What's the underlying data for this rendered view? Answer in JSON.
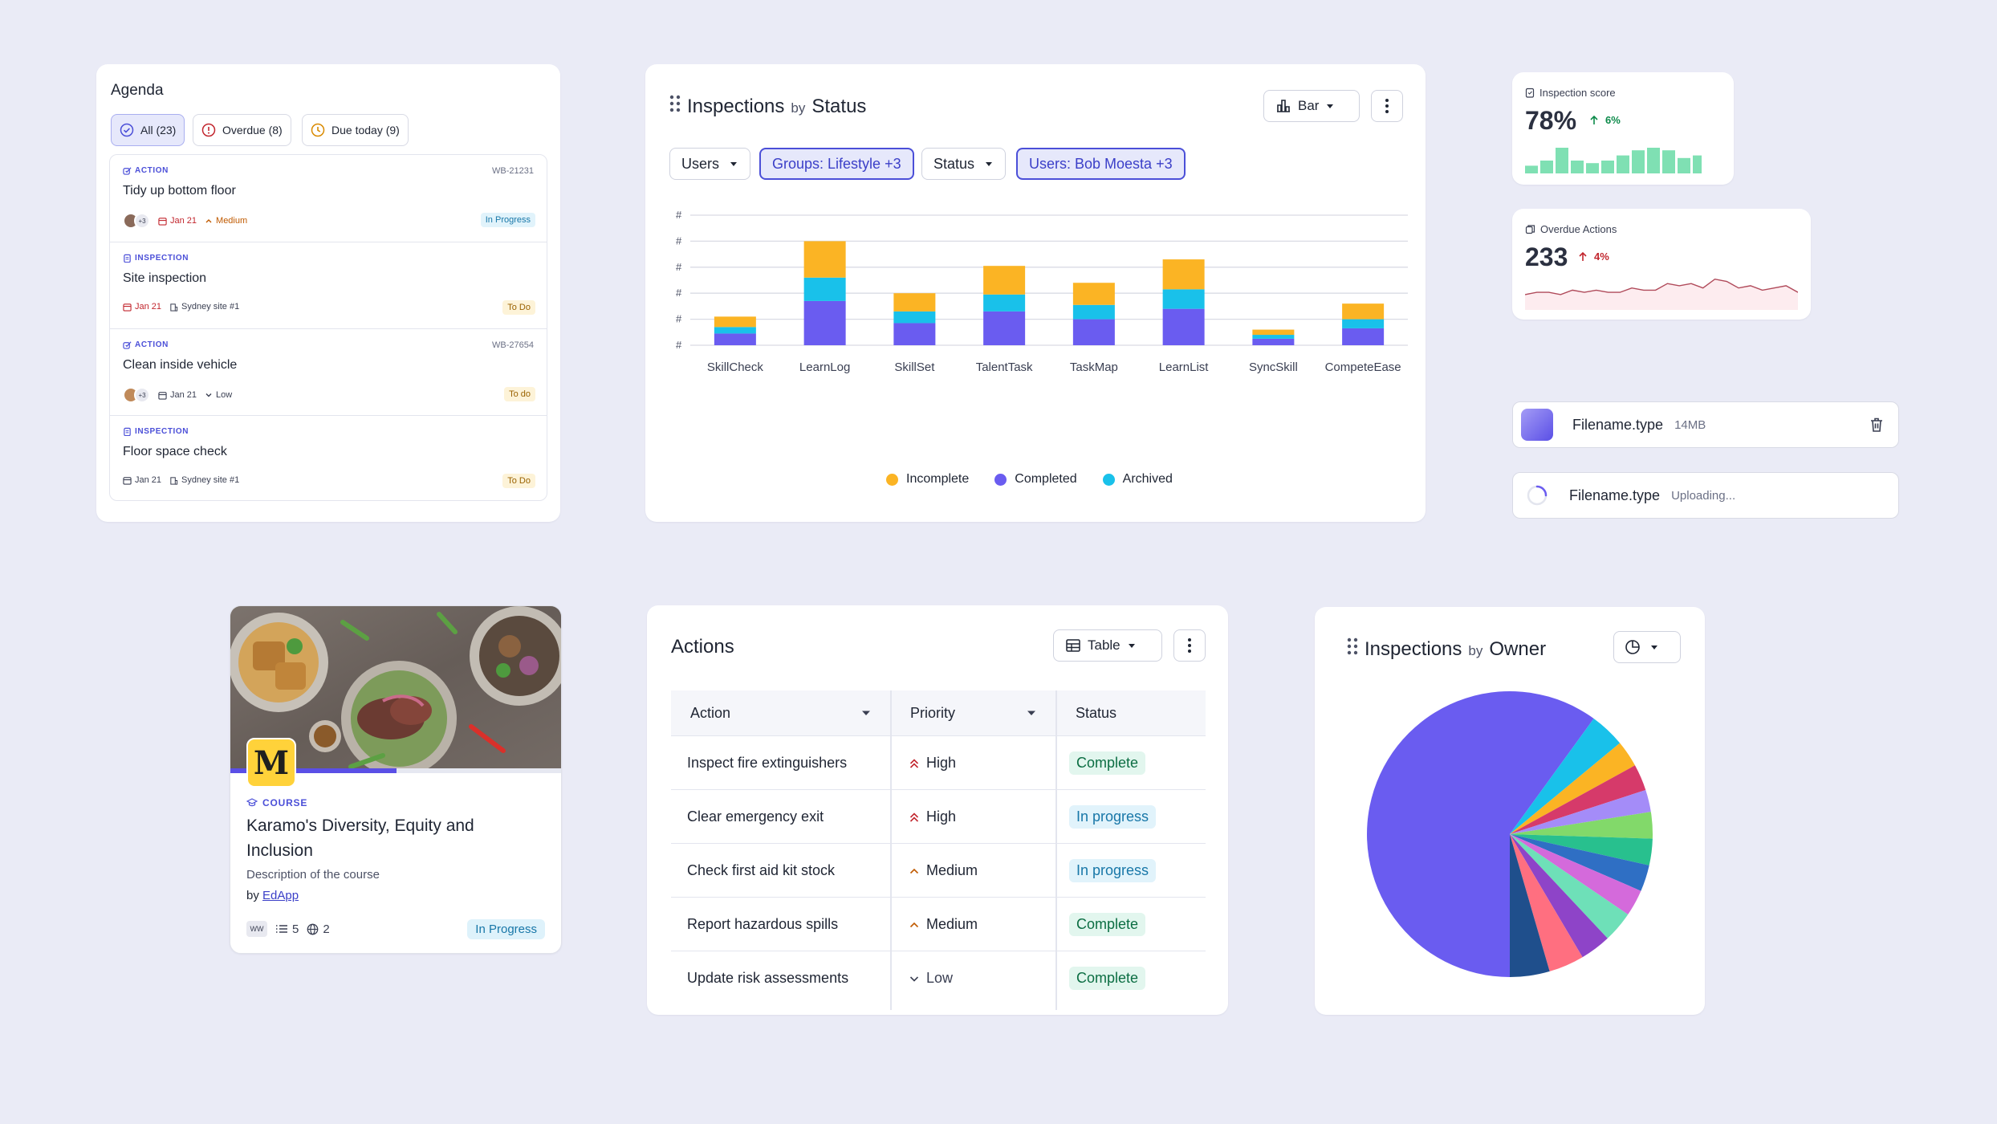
{
  "agenda": {
    "title": "Agenda",
    "filters": [
      {
        "label": "All (23)",
        "icon": "check-circle-icon"
      },
      {
        "label": "Overdue (8)",
        "icon": "alert-circle-icon"
      },
      {
        "label": "Due today (9)",
        "icon": "clock-icon"
      }
    ],
    "items": [
      {
        "type": "ACTION",
        "code": "WB-21231",
        "name": "Tidy up bottom floor",
        "avatar_extra": "+3",
        "date": "Jan 21",
        "priority": "Medium",
        "status": "In Progress"
      },
      {
        "type": "INSPECTION",
        "code": "",
        "name": "Site inspection",
        "date": "Jan 21",
        "site": "Sydney site #1",
        "status": "To Do"
      },
      {
        "type": "ACTION",
        "code": "WB-27654",
        "name": "Clean inside vehicle",
        "avatar_extra": "+3",
        "date": "Jan 21",
        "priority": "Low",
        "status": "To do"
      },
      {
        "type": "INSPECTION",
        "code": "",
        "name": "Floor space check",
        "date": "Jan 21",
        "site": "Sydney site #1",
        "status": "To Do"
      }
    ]
  },
  "inspections_status": {
    "title": "Inspections",
    "by": "by",
    "group": "Status",
    "view_label": "Bar",
    "filters": [
      "Users",
      "Groups: Lifestyle +3",
      "Status",
      "Users: Bob Moesta +3"
    ],
    "y_tick_label": "#",
    "legend": [
      "Incomplete",
      "Completed",
      "Archived"
    ]
  },
  "chart_data": [
    {
      "type": "bar",
      "stacked": true,
      "title": "Inspections by Status",
      "categories": [
        "SkillCheck",
        "LearnLog",
        "SkillSet",
        "TalentTask",
        "TaskMap",
        "LearnList",
        "SyncSkill",
        "CompeteEase"
      ],
      "series": [
        {
          "name": "Completed",
          "color": "#6a5cf0",
          "values": [
            9,
            34,
            17,
            26,
            20,
            28,
            5,
            13
          ]
        },
        {
          "name": "Archived",
          "color": "#19c1ea",
          "values": [
            5,
            18,
            9,
            13,
            11,
            15,
            3,
            7
          ]
        },
        {
          "name": "Incomplete",
          "color": "#fbb424",
          "values": [
            8,
            28,
            14,
            22,
            17,
            23,
            4,
            12
          ]
        }
      ],
      "ylim": [
        0,
        100
      ],
      "ytick_labels": [
        "#",
        "#",
        "#",
        "#",
        "#",
        "#"
      ],
      "grid": true,
      "legend_position": "bottom"
    },
    {
      "type": "pie",
      "title": "Inspections by Owner",
      "values": [
        60,
        4,
        3,
        3,
        2.5,
        3,
        3,
        3,
        3,
        3.5,
        3.5,
        4,
        4.5
      ],
      "colors": [
        "#6a5cf0",
        "#19c1ea",
        "#fbb424",
        "#d63a6a",
        "#a48cf8",
        "#82d96a",
        "#28c08e",
        "#2f6fc4",
        "#d46adb",
        "#6ee0b8",
        "#8e44c8",
        "#ff6f80",
        "#1f4f8c"
      ]
    }
  ],
  "inspection_score": {
    "label": "Inspection score",
    "value": "78%",
    "delta": "6%",
    "bars": [
      3,
      5,
      10,
      5,
      4,
      5,
      7,
      9,
      10,
      9,
      6,
      7
    ]
  },
  "overdue_actions": {
    "label": "Overdue Actions",
    "value": "233",
    "delta": "4%",
    "trend": [
      7,
      8,
      8,
      7,
      9,
      8,
      9,
      8,
      8,
      10,
      9,
      9,
      12,
      11,
      12,
      10,
      14,
      13,
      10,
      11,
      9,
      10,
      11,
      8
    ]
  },
  "files": [
    {
      "name": "Filename.type",
      "meta": "14MB"
    },
    {
      "name": "Filename.type",
      "meta": "Uploading..."
    }
  ],
  "course": {
    "type": "COURSE",
    "title": "Karamo's Diversity, Equity and Inclusion",
    "description": "Description of the course",
    "by_prefix": "by",
    "author": "EdApp",
    "avatar": "WW",
    "lessons": "5",
    "languages": "2",
    "status": "In Progress",
    "logo_letter": "M",
    "progress": 0.5
  },
  "actions": {
    "title": "Actions",
    "view_label": "Table",
    "columns": [
      "Action",
      "Priority",
      "Status"
    ],
    "rows": [
      {
        "action": "Inspect fire extinguishers",
        "priority": "High",
        "status": "Complete"
      },
      {
        "action": "Clear emergency exit",
        "priority": "High",
        "status": "In progress"
      },
      {
        "action": "Check first aid kit stock",
        "priority": "Medium",
        "status": "In progress"
      },
      {
        "action": "Report hazardous spills",
        "priority": "Medium",
        "status": "Complete"
      },
      {
        "action": "Update risk assessments",
        "priority": "Low",
        "status": "Complete"
      }
    ]
  },
  "inspections_owner": {
    "title": "Inspections",
    "by": "by",
    "group": "Owner"
  }
}
